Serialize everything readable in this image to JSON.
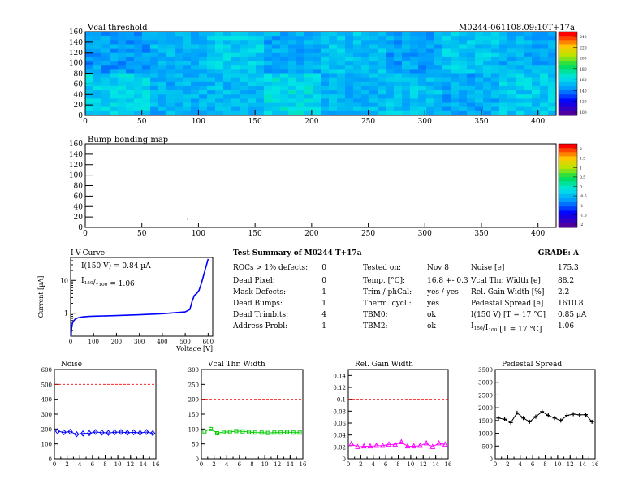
{
  "header": {
    "vcal_title": "Vcal threshold",
    "module_id": "M0244-061108.09:10T+17a"
  },
  "bump_title": "Bump bonding map",
  "iv": {
    "title": "I-V-Curve",
    "annotation_current": "I(150 V) = 0.84 µA",
    "annotation_ratio": "I150/I100 = 1.06",
    "ylabel": "Current [µA]",
    "xlabel": "Voltage [V]"
  },
  "summary": {
    "title": "Test Summary of M0244    T+17a",
    "grade": "GRADE:  A",
    "col1": [
      {
        "label": "ROCs > 1% defects:",
        "value": "0"
      },
      {
        "label": "Dead Pixel:",
        "value": "0"
      },
      {
        "label": "Mask Defects:",
        "value": "1"
      },
      {
        "label": "Dead Bumps:",
        "value": "1"
      },
      {
        "label": "Dead Trimbits:",
        "value": "4"
      },
      {
        "label": "Address Probl:",
        "value": "1"
      }
    ],
    "col2": [
      {
        "label": "Tested on:",
        "value": "Nov 8"
      },
      {
        "label": "Temp. [°C]:",
        "value": "16.8 +- 0.3"
      },
      {
        "label": "Trim / phCal:",
        "value": "yes / yes"
      },
      {
        "label": "Therm. cycl.:",
        "value": "yes"
      },
      {
        "label": "TBM0:",
        "value": "ok"
      },
      {
        "label": "TBM2:",
        "value": "ok"
      }
    ],
    "col3": [
      {
        "label": "Noise [e]",
        "value": "175.3"
      },
      {
        "label": "Vcal Thr. Width [e]",
        "value": "88.2"
      },
      {
        "label": "Rel. Gain Width [%]",
        "value": "2.2"
      },
      {
        "label": "Pedestal Spread [e]",
        "value": "1610.8"
      },
      {
        "label": "I(150 V) [T = 17 °C]",
        "value": "0.85 µA"
      },
      {
        "label": "I150/I100   [T = 17 °C]",
        "value": "1.06"
      }
    ]
  },
  "chart_data": [
    {
      "type": "heatmap",
      "title": "Vcal threshold",
      "x_range": [
        0,
        416
      ],
      "y_range": [
        0,
        160
      ],
      "xticks": [
        0,
        50,
        100,
        150,
        200,
        250,
        300,
        350,
        400
      ],
      "yticks": [
        0,
        20,
        40,
        60,
        80,
        100,
        120,
        140,
        160
      ],
      "zticks": [
        "240",
        "220",
        "200",
        "180",
        "160",
        "140",
        "120",
        "100"
      ]
    },
    {
      "type": "heatmap",
      "title": "Bump bonding map",
      "x_range": [
        0,
        416
      ],
      "y_range": [
        0,
        160
      ],
      "xticks": [
        0,
        50,
        100,
        150,
        200,
        250,
        300,
        350,
        400
      ],
      "yticks": [
        0,
        20,
        40,
        60,
        80,
        100,
        120,
        140,
        160
      ],
      "zticks": [
        "2",
        "1.5",
        "1",
        "0.5",
        "0",
        "-0.5",
        "-1",
        "-1.5",
        "-2"
      ],
      "points": [
        {
          "x": 90,
          "y": 17
        }
      ]
    },
    {
      "type": "line",
      "title": "I-V-Curve",
      "xlabel": "Voltage [V]",
      "ylabel": "Current [µA]",
      "x_range": [
        0,
        620
      ],
      "y_log": true,
      "y_range": [
        0.2,
        50
      ],
      "xticks": [
        0,
        100,
        200,
        300,
        400,
        500,
        600
      ],
      "yticks": [
        1,
        10
      ],
      "x": [
        2,
        5,
        10,
        20,
        30,
        50,
        80,
        120,
        200,
        300,
        400,
        500,
        520,
        530,
        540,
        550,
        560,
        570,
        580,
        590,
        600
      ],
      "y": [
        0.2,
        0.4,
        0.55,
        0.66,
        0.72,
        0.77,
        0.8,
        0.82,
        0.85,
        0.9,
        0.97,
        1.1,
        1.3,
        2.3,
        3.5,
        4.0,
        5.0,
        8.0,
        14,
        25,
        45
      ]
    },
    {
      "type": "line",
      "title": "Noise",
      "x_range": [
        0,
        16
      ],
      "y_range": [
        0,
        600
      ],
      "xticks": [
        0,
        2,
        4,
        6,
        8,
        10,
        12,
        14,
        16
      ],
      "yticks": [
        0,
        100,
        200,
        300,
        400,
        500,
        600
      ],
      "threshold": 500,
      "color": "#0000ff",
      "marker": "diamond",
      "x": [
        0,
        1,
        2,
        3,
        4,
        5,
        6,
        7,
        8,
        9,
        10,
        11,
        12,
        13,
        14,
        15
      ],
      "y": [
        185,
        178,
        182,
        165,
        170,
        172,
        180,
        176,
        174,
        178,
        180,
        175,
        178,
        174,
        180,
        172
      ]
    },
    {
      "type": "line",
      "title": "Vcal Thr. Width",
      "x_range": [
        0,
        16
      ],
      "y_range": [
        0,
        300
      ],
      "xticks": [
        0,
        2,
        4,
        6,
        8,
        10,
        12,
        14,
        16
      ],
      "yticks": [
        0,
        50,
        100,
        150,
        200,
        250,
        300
      ],
      "threshold": 200,
      "color": "#00cc00",
      "marker": "square",
      "x": [
        0,
        1,
        2,
        3,
        4,
        5,
        6,
        7,
        8,
        9,
        10,
        11,
        12,
        13,
        14,
        15
      ],
      "y": [
        92,
        100,
        86,
        90,
        90,
        93,
        92,
        90,
        88,
        88,
        87,
        88,
        88,
        90,
        88,
        88
      ]
    },
    {
      "type": "line",
      "title": "Rel. Gain Width",
      "x_range": [
        0,
        16
      ],
      "y_range": [
        0,
        0.15
      ],
      "xticks": [
        0,
        2,
        4,
        6,
        8,
        10,
        12,
        14,
        16
      ],
      "yticks": [
        "0",
        "0.02",
        "0.04",
        "0.06",
        "0.08",
        "0.1",
        "0.12",
        "0.14"
      ],
      "threshold": 0.1,
      "color": "#ff00ff",
      "marker": "triangle",
      "x": [
        0,
        1,
        2,
        3,
        4,
        5,
        6,
        7,
        8,
        9,
        10,
        11,
        12,
        13,
        14,
        15
      ],
      "y": [
        0.025,
        0.02,
        0.021,
        0.021,
        0.022,
        0.022,
        0.024,
        0.024,
        0.028,
        0.021,
        0.021,
        0.022,
        0.026,
        0.02,
        0.026,
        0.024
      ]
    },
    {
      "type": "line",
      "title": "Pedestal Spread",
      "x_range": [
        0,
        16
      ],
      "y_range": [
        0,
        3500
      ],
      "xticks": [
        0,
        2,
        4,
        6,
        8,
        10,
        12,
        14,
        16
      ],
      "yticks": [
        0,
        500,
        1000,
        1500,
        2000,
        2500,
        3000,
        3500
      ],
      "threshold": 2500,
      "color": "#000000",
      "marker": "star",
      "x": [
        0,
        1,
        2,
        3,
        4,
        5,
        6,
        7,
        8,
        9,
        10,
        11,
        12,
        13,
        14,
        15
      ],
      "y": [
        1600,
        1550,
        1420,
        1800,
        1600,
        1450,
        1650,
        1850,
        1700,
        1600,
        1500,
        1700,
        1750,
        1720,
        1730,
        1450
      ]
    }
  ]
}
